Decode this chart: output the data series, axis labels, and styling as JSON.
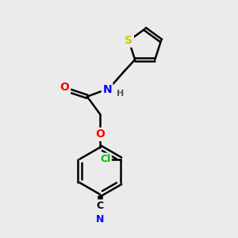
{
  "bg_color": "#ebebeb",
  "bond_color": "#000000",
  "bond_width": 1.8,
  "atom_colors": {
    "O": "#ff0000",
    "N": "#0000ff",
    "S": "#cccc00",
    "Cl": "#00bb00",
    "H": "#555555"
  },
  "font_size_atom": 10,
  "font_size_h": 8
}
